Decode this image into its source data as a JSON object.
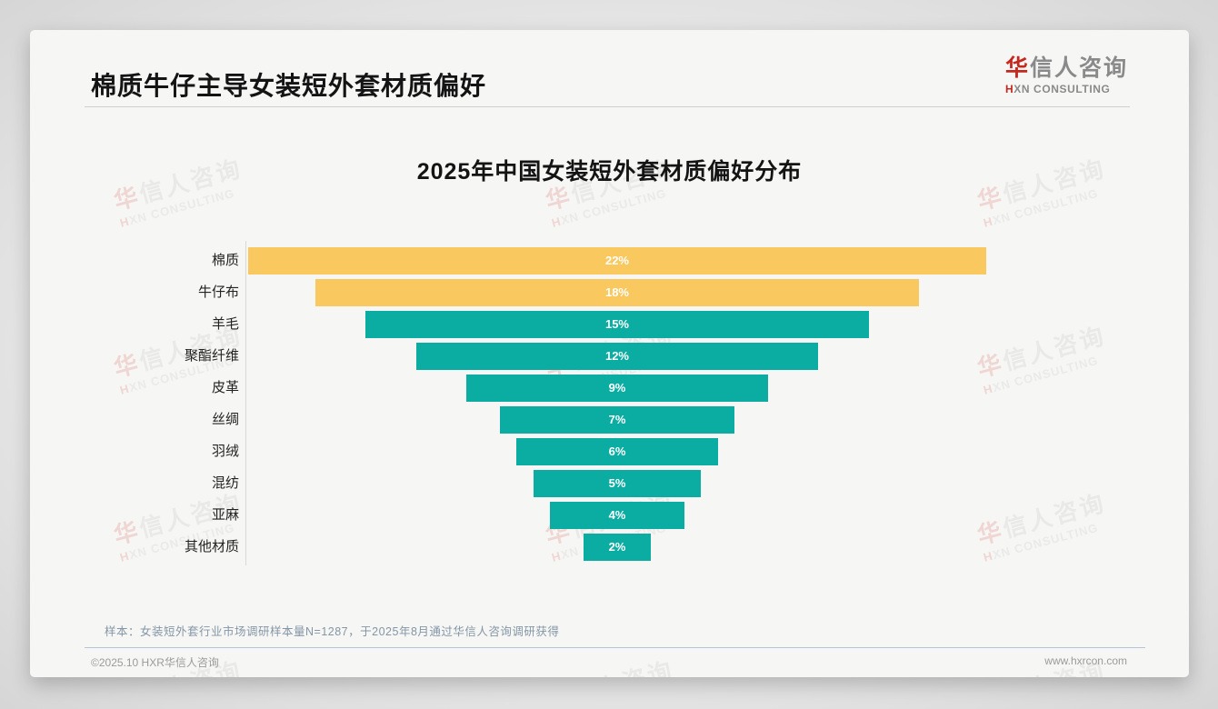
{
  "page": {
    "title": "棉质牛仔主导女装短外套材质偏好",
    "logo": {
      "zh_first": "华",
      "zh_rest": "信人咨询",
      "en_first": "H",
      "en_rest": "XN CONSULTING"
    },
    "watermark": {
      "zh_first": "华",
      "zh_rest": "信人咨询",
      "en_first": "H",
      "en_rest": "XN CONSULTING"
    },
    "note": "样本：女装短外套行业市场调研样本量N=1287，于2025年8月通过华信人咨询调研获得",
    "footer": {
      "copyright": "©2025.10 HXR华信人咨询",
      "website": "www.hxrcon.com"
    }
  },
  "chart_data": {
    "type": "bar",
    "variant": "centered-funnel",
    "orientation": "horizontal",
    "title": "2025年中国女装短外套材质偏好分布",
    "categories": [
      "棉质",
      "牛仔布",
      "羊毛",
      "聚酯纤维",
      "皮革",
      "丝绸",
      "羽绒",
      "混纺",
      "亚麻",
      "其他材质"
    ],
    "values": [
      22,
      18,
      15,
      12,
      9,
      7,
      6,
      5,
      4,
      2
    ],
    "unit": "%",
    "value_labels": [
      "22%",
      "18%",
      "15%",
      "12%",
      "9%",
      "7%",
      "6%",
      "5%",
      "4%",
      "2%"
    ],
    "xlabel": "",
    "ylabel": "",
    "grid": false,
    "legend": false,
    "colors": {
      "highlight": "#F9C85F",
      "default": "#0BADA2",
      "highlight_count": 2,
      "value_label_color": "#ffffff",
      "category_label_color": "#222222"
    }
  }
}
